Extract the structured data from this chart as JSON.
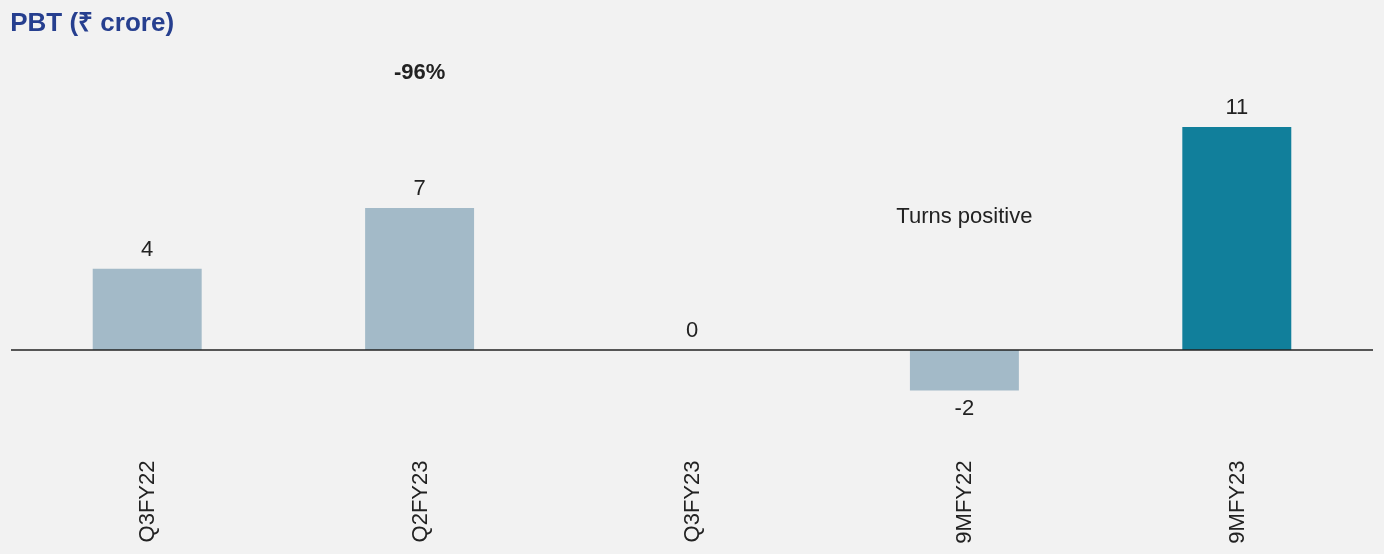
{
  "chart_data": {
    "type": "bar",
    "title": "PBT (₹ crore)",
    "categories": [
      "Q3FY22",
      "Q2FY23",
      "Q3FY23",
      "9MFY22",
      "9MFY23"
    ],
    "values": [
      4,
      7,
      0,
      -2,
      11
    ],
    "colors": [
      "#a3bac8",
      "#a3bac8",
      "#117f9b",
      "#a3bac8",
      "#117f9b"
    ],
    "data_labels": true,
    "annotations": [
      "-96%",
      "Turns positive"
    ]
  }
}
